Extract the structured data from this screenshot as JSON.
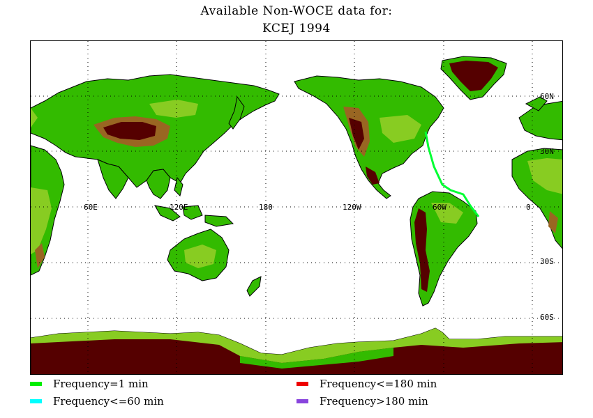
{
  "title": {
    "line1": "Available Non-WOCE data for:",
    "line2": "KCEJ 1994"
  },
  "map": {
    "longitude_labels": [
      "60E",
      "120E",
      "180",
      "120W",
      "60W",
      "0"
    ],
    "latitude_labels": [
      "60N",
      "30N",
      "30S",
      "60S"
    ],
    "colors": {
      "ocean": "#ffffff",
      "lowland": "#33bb00",
      "midland": "#88cc22",
      "upland": "#ccaa33",
      "highland": "#996622",
      "mountain": "#550000",
      "coast": "#000000",
      "track": "#00ff33"
    }
  },
  "legend": {
    "items": [
      {
        "label": "Frequency=1 min",
        "color": "#00ee00"
      },
      {
        "label": "Frequency<=60 min",
        "color": "#00ffff"
      },
      {
        "label": "Frequency<=180 min",
        "color": "#ee0000"
      },
      {
        "label": "Frequency>180 min",
        "color": "#8844dd"
      }
    ]
  }
}
